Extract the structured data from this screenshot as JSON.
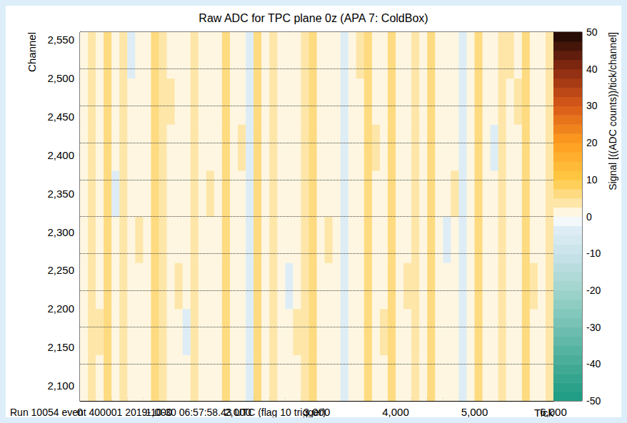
{
  "chart_data": {
    "type": "heatmap",
    "title": "Raw ADC for TPC plane 0z (APA 7: ColdBox)",
    "annotations": [
      "Run 10054 event 400001 2019-10-30 06:57:58.43 UTC (flag 10 trigger)"
    ],
    "x_label": "Tick",
    "y_label": "Channel",
    "xlim": [
      0,
      6000
    ],
    "xticks": [
      0,
      1000,
      2000,
      3000,
      4000,
      5000,
      6000
    ],
    "ylim": [
      2080,
      2560
    ],
    "yticks": [
      2100,
      2150,
      2200,
      2250,
      2300,
      2350,
      2400,
      2450,
      2500,
      2550
    ],
    "grid": false,
    "x_bins": [
      0,
      100,
      200,
      300,
      400,
      500,
      600,
      700,
      800,
      900,
      1000,
      1100,
      1200,
      1300,
      1400,
      1500,
      1600,
      1700,
      1800,
      1900,
      2000,
      2100,
      2200,
      2300,
      2400,
      2500,
      2600,
      2700,
      2800,
      2900,
      3000,
      3100,
      3200,
      3300,
      3400,
      3500,
      3600,
      3700,
      3800,
      3900,
      4000,
      4100,
      4200,
      4300,
      4400,
      4500,
      4600,
      4700,
      4800,
      4900,
      5000,
      5100,
      5200,
      5300,
      5400,
      5500,
      5600,
      5700,
      5800,
      5900,
      6000
    ],
    "y_bins": [
      2080,
      2140,
      2200,
      2260,
      2320,
      2380,
      2440,
      2500,
      2560
    ],
    "cells": [
      [
        2,
        4,
        1,
        5,
        2,
        3,
        1,
        2,
        1,
        5,
        4,
        1,
        2,
        0,
        4,
        1,
        2,
        1,
        5,
        2,
        1,
        -4,
        5,
        0,
        4,
        2,
        1,
        2,
        3,
        5,
        2,
        1,
        0,
        -4,
        1,
        2,
        5,
        1,
        2,
        5,
        1,
        2,
        4,
        1,
        5,
        2,
        0,
        1,
        -4,
        2,
        5,
        1,
        2,
        4,
        1,
        0,
        5,
        2,
        1,
        4
      ],
      [
        2,
        4,
        3,
        5,
        2,
        3,
        1,
        2,
        1,
        5,
        4,
        1,
        2,
        -3,
        4,
        1,
        2,
        1,
        5,
        2,
        1,
        -4,
        5,
        0,
        4,
        2,
        1,
        4,
        3,
        5,
        2,
        1,
        0,
        -4,
        1,
        2,
        5,
        1,
        3,
        5,
        1,
        2,
        4,
        1,
        5,
        2,
        0,
        1,
        -4,
        2,
        5,
        1,
        2,
        4,
        1,
        0,
        5,
        2,
        1,
        4
      ],
      [
        1,
        4,
        1,
        5,
        2,
        4,
        1,
        2,
        1,
        5,
        4,
        1,
        3,
        0,
        4,
        1,
        2,
        1,
        5,
        2,
        1,
        -3,
        5,
        0,
        4,
        2,
        -3,
        2,
        3,
        5,
        2,
        1,
        0,
        -4,
        1,
        2,
        5,
        1,
        2,
        5,
        1,
        3,
        4,
        1,
        5,
        2,
        0,
        1,
        -4,
        2,
        5,
        1,
        2,
        4,
        1,
        0,
        5,
        3,
        1,
        4
      ],
      [
        2,
        4,
        1,
        5,
        2,
        3,
        1,
        3,
        1,
        5,
        4,
        1,
        2,
        0,
        4,
        1,
        2,
        1,
        5,
        2,
        1,
        -4,
        5,
        0,
        4,
        2,
        1,
        2,
        3,
        5,
        2,
        4,
        0,
        -4,
        1,
        2,
        5,
        1,
        2,
        5,
        1,
        2,
        4,
        1,
        5,
        2,
        -3,
        1,
        -4,
        2,
        5,
        1,
        2,
        4,
        1,
        0,
        5,
        2,
        1,
        4
      ],
      [
        2,
        4,
        1,
        5,
        -3,
        3,
        1,
        2,
        1,
        5,
        4,
        1,
        2,
        0,
        4,
        1,
        3,
        1,
        5,
        2,
        1,
        -4,
        5,
        0,
        4,
        2,
        1,
        2,
        3,
        5,
        2,
        1,
        0,
        -4,
        1,
        2,
        5,
        1,
        2,
        5,
        1,
        2,
        4,
        1,
        5,
        2,
        0,
        3,
        -4,
        2,
        5,
        1,
        2,
        4,
        1,
        0,
        5,
        2,
        1,
        4
      ],
      [
        2,
        4,
        1,
        5,
        2,
        3,
        1,
        2,
        1,
        5,
        4,
        1,
        2,
        0,
        4,
        1,
        2,
        1,
        5,
        2,
        3,
        -4,
        5,
        0,
        4,
        2,
        1,
        2,
        3,
        5,
        2,
        1,
        0,
        -4,
        1,
        2,
        5,
        3,
        2,
        5,
        1,
        2,
        4,
        1,
        5,
        2,
        0,
        1,
        -4,
        2,
        5,
        1,
        -3,
        4,
        1,
        0,
        5,
        2,
        1,
        4
      ],
      [
        2,
        4,
        1,
        5,
        2,
        3,
        1,
        2,
        1,
        5,
        4,
        3,
        2,
        0,
        4,
        1,
        2,
        1,
        5,
        2,
        1,
        -4,
        5,
        0,
        4,
        2,
        1,
        2,
        3,
        5,
        2,
        1,
        0,
        -4,
        1,
        2,
        5,
        1,
        2,
        5,
        1,
        2,
        4,
        1,
        5,
        2,
        0,
        1,
        -4,
        2,
        5,
        1,
        2,
        4,
        1,
        3,
        5,
        2,
        1,
        4
      ],
      [
        2,
        4,
        1,
        5,
        2,
        3,
        -3,
        2,
        1,
        5,
        4,
        1,
        2,
        0,
        4,
        1,
        2,
        1,
        5,
        2,
        1,
        -4,
        5,
        0,
        4,
        2,
        1,
        2,
        3,
        5,
        2,
        1,
        0,
        -4,
        1,
        4,
        5,
        1,
        2,
        5,
        1,
        2,
        4,
        1,
        5,
        2,
        0,
        1,
        -4,
        2,
        5,
        1,
        2,
        4,
        3,
        0,
        5,
        2,
        1,
        4
      ]
    ],
    "colorbar_label": "Signal [((ADC counts))/tick/channel]",
    "colorbar_range": [
      -50,
      50
    ],
    "colorbar_ticks": [
      -50,
      -40,
      -30,
      -20,
      -10,
      0,
      10,
      20,
      30,
      40,
      50
    ],
    "separators": [
      2128,
      2176,
      2224,
      2272,
      2320,
      2368,
      2416,
      2464,
      2512
    ]
  }
}
